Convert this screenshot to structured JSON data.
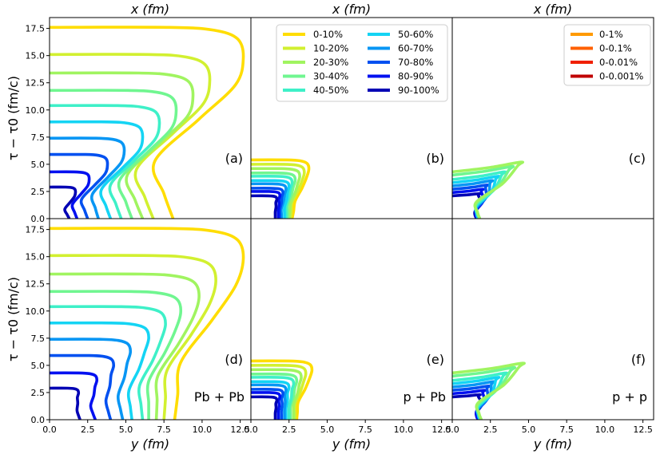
{
  "chart_data": {
    "type": "line",
    "layout": "2 rows x 3 columns of freeze-out surface contour panels",
    "top_axis_label": "x (fm)",
    "bottom_axis_label": "y (fm)",
    "ylabel": "τ − τ0 (fm/c)",
    "xlim": [
      0,
      13.2
    ],
    "ylim": [
      0,
      18.5
    ],
    "xticks": [
      "0.0",
      "2.5",
      "5.0",
      "7.5",
      "10.0",
      "12.5"
    ],
    "yticks": [
      "0.0",
      "2.5",
      "5.0",
      "7.5",
      "10.0",
      "12.5",
      "15.0",
      "17.5"
    ],
    "centrality_legend": {
      "entries": [
        {
          "label": "0-10%",
          "color": "#ffdd00"
        },
        {
          "label": "10-20%",
          "color": "#d2f030"
        },
        {
          "label": "20-30%",
          "color": "#a0f460"
        },
        {
          "label": "30-40%",
          "color": "#70f690"
        },
        {
          "label": "40-50%",
          "color": "#3ef0c8"
        },
        {
          "label": "50-60%",
          "color": "#14d4f4"
        },
        {
          "label": "60-70%",
          "color": "#0896f4"
        },
        {
          "label": "70-80%",
          "color": "#0050f0"
        },
        {
          "label": "80-90%",
          "color": "#0010f0"
        },
        {
          "label": "90-100%",
          "color": "#0000b4"
        }
      ]
    },
    "extra_legend": {
      "entries": [
        {
          "label": "0-1%",
          "color": "#ff9a00"
        },
        {
          "label": "0-0.1%",
          "color": "#ff6000"
        },
        {
          "label": "0-0.01%",
          "color": "#f02000"
        },
        {
          "label": "0-0.001%",
          "color": "#c00000"
        }
      ]
    },
    "panels": [
      {
        "id": "a",
        "label": "(a)",
        "system": "",
        "axis": "x",
        "curves": [
          {
            "tau_max": 17.6,
            "r0": 8.1,
            "r_mid": 6.9,
            "r_max": 12.7
          },
          {
            "tau_max": 15.1,
            "r0": 6.8,
            "r_mid": 5.7,
            "r_max": 10.5
          },
          {
            "tau_max": 13.4,
            "r0": 6.1,
            "r_mid": 5.1,
            "r_max": 9.4
          },
          {
            "tau_max": 11.8,
            "r0": 5.4,
            "r_mid": 4.6,
            "r_max": 8.3
          },
          {
            "tau_max": 10.4,
            "r0": 4.7,
            "r_mid": 4.0,
            "r_max": 7.2
          },
          {
            "tau_max": 8.9,
            "r0": 4.0,
            "r_mid": 3.4,
            "r_max": 6.1
          },
          {
            "tau_max": 7.4,
            "r0": 3.2,
            "r_mid": 2.8,
            "r_max": 4.9
          },
          {
            "tau_max": 5.9,
            "r0": 2.5,
            "r_mid": 2.1,
            "r_max": 3.8
          },
          {
            "tau_max": 4.3,
            "r0": 1.8,
            "r_mid": 1.5,
            "r_max": 2.6
          },
          {
            "tau_max": 2.9,
            "r0": 1.3,
            "r_mid": 1.0,
            "r_max": 1.7
          }
        ]
      },
      {
        "id": "b",
        "label": "(b)",
        "system": "",
        "axis": "x",
        "curves": [
          {
            "tau_max": 5.4,
            "r0": 2.7,
            "r_mid": 2.9,
            "r_max": 3.8
          },
          {
            "tau_max": 5.0,
            "r0": 2.6,
            "r_mid": 2.7,
            "r_max": 3.5
          },
          {
            "tau_max": 4.6,
            "r0": 2.5,
            "r_mid": 2.6,
            "r_max": 3.2
          },
          {
            "tau_max": 4.2,
            "r0": 2.4,
            "r_mid": 2.4,
            "r_max": 2.9
          },
          {
            "tau_max": 3.9,
            "r0": 2.3,
            "r_mid": 2.3,
            "r_max": 2.7
          },
          {
            "tau_max": 3.5,
            "r0": 2.2,
            "r_mid": 2.2,
            "r_max": 2.5
          },
          {
            "tau_max": 3.2,
            "r0": 2.0,
            "r_mid": 2.0,
            "r_max": 2.3
          },
          {
            "tau_max": 2.8,
            "r0": 1.9,
            "r_mid": 1.9,
            "r_max": 2.1
          },
          {
            "tau_max": 2.5,
            "r0": 1.8,
            "r_mid": 1.8,
            "r_max": 1.9
          },
          {
            "tau_max": 2.1,
            "r0": 1.6,
            "r_mid": 1.6,
            "r_max": 1.7
          }
        ]
      },
      {
        "id": "c",
        "label": "(c)",
        "system": "",
        "axis": "x",
        "curves": [
          {
            "tau_max": 4.3,
            "r0": 1.8,
            "r_mid": 1.5,
            "r_max": 4.5,
            "tip": 5.2
          },
          {
            "tau_max": 4.0,
            "r0": 1.8,
            "r_mid": 1.5,
            "r_max": 3.9,
            "tip": 4.8
          },
          {
            "tau_max": 3.6,
            "r0": 1.8,
            "r_mid": 1.5,
            "r_max": 3.4,
            "tip": 4.3
          },
          {
            "tau_max": 3.3,
            "r0": 1.7,
            "r_mid": 1.5,
            "r_max": 3.0,
            "tip": 3.9
          },
          {
            "tau_max": 3.0,
            "r0": 1.7,
            "r_mid": 1.5,
            "r_max": 2.6,
            "tip": 3.5
          },
          {
            "tau_max": 2.7,
            "r0": 1.7,
            "r_mid": 1.5,
            "r_max": 2.3,
            "tip": 3.1
          },
          {
            "tau_max": 2.4,
            "r0": 1.6,
            "r_mid": 1.5,
            "r_max": 2.0,
            "tip": 2.7
          },
          {
            "tau_max": 2.1,
            "r0": 1.6,
            "r_mid": 1.4,
            "r_max": 1.8,
            "tip": 2.3
          }
        ]
      },
      {
        "id": "d",
        "label": "(d)",
        "system": "Pb + Pb",
        "axis": "y",
        "curves": [
          {
            "tau_max": 17.6,
            "r0": 8.2,
            "r_mid": 8.6,
            "r_max": 12.7
          },
          {
            "tau_max": 15.1,
            "r0": 7.5,
            "r_mid": 7.7,
            "r_max": 10.9
          },
          {
            "tau_max": 13.4,
            "r0": 7.0,
            "r_mid": 7.1,
            "r_max": 9.8
          },
          {
            "tau_max": 11.8,
            "r0": 6.5,
            "r_mid": 6.5,
            "r_max": 8.6
          },
          {
            "tau_max": 10.4,
            "r0": 6.1,
            "r_mid": 5.9,
            "r_max": 7.6
          },
          {
            "tau_max": 8.9,
            "r0": 5.4,
            "r_mid": 5.2,
            "r_max": 6.5
          },
          {
            "tau_max": 7.4,
            "r0": 4.8,
            "r_mid": 4.5,
            "r_max": 5.3
          },
          {
            "tau_max": 5.9,
            "r0": 4.0,
            "r_mid": 3.7,
            "r_max": 4.2
          },
          {
            "tau_max": 4.3,
            "r0": 3.0,
            "r_mid": 2.7,
            "r_max": 3.1
          },
          {
            "tau_max": 2.9,
            "r0": 2.0,
            "r_mid": 1.8,
            "r_max": 1.9
          }
        ]
      },
      {
        "id": "e",
        "label": "(e)",
        "system": "p + Pb",
        "axis": "y",
        "curves": [
          {
            "tau_max": 5.4,
            "r0": 3.0,
            "r_mid": 3.1,
            "r_max": 4.0
          },
          {
            "tau_max": 5.0,
            "r0": 2.9,
            "r_mid": 2.9,
            "r_max": 3.6
          },
          {
            "tau_max": 4.6,
            "r0": 2.8,
            "r_mid": 2.8,
            "r_max": 3.3
          },
          {
            "tau_max": 4.2,
            "r0": 2.6,
            "r_mid": 2.6,
            "r_max": 3.0
          },
          {
            "tau_max": 3.9,
            "r0": 2.5,
            "r_mid": 2.5,
            "r_max": 2.8
          },
          {
            "tau_max": 3.5,
            "r0": 2.3,
            "r_mid": 2.3,
            "r_max": 2.5
          },
          {
            "tau_max": 3.2,
            "r0": 2.2,
            "r_mid": 2.2,
            "r_max": 2.3
          },
          {
            "tau_max": 2.8,
            "r0": 2.0,
            "r_mid": 2.0,
            "r_max": 2.1
          },
          {
            "tau_max": 2.5,
            "r0": 1.8,
            "r_mid": 1.8,
            "r_max": 1.9
          },
          {
            "tau_max": 2.1,
            "r0": 1.6,
            "r_mid": 1.6,
            "r_max": 1.7
          }
        ]
      },
      {
        "id": "f",
        "label": "(f)",
        "system": "p + p",
        "axis": "y",
        "curves": [
          {
            "tau_max": 4.3,
            "r0": 1.9,
            "r_mid": 1.6,
            "r_max": 4.6,
            "tip": 5.2
          },
          {
            "tau_max": 4.0,
            "r0": 1.9,
            "r_mid": 1.6,
            "r_max": 4.0,
            "tip": 4.8
          },
          {
            "tau_max": 3.6,
            "r0": 1.9,
            "r_mid": 1.6,
            "r_max": 3.5,
            "tip": 4.3
          },
          {
            "tau_max": 3.3,
            "r0": 1.8,
            "r_mid": 1.6,
            "r_max": 3.0,
            "tip": 3.9
          },
          {
            "tau_max": 3.0,
            "r0": 1.8,
            "r_mid": 1.6,
            "r_max": 2.7,
            "tip": 3.5
          },
          {
            "tau_max": 2.7,
            "r0": 1.8,
            "r_mid": 1.6,
            "r_max": 2.4,
            "tip": 3.1
          },
          {
            "tau_max": 2.4,
            "r0": 1.7,
            "r_mid": 1.5,
            "r_max": 2.1,
            "tip": 2.7
          },
          {
            "tau_max": 2.1,
            "r0": 1.7,
            "r_mid": 1.5,
            "r_max": 1.8,
            "tip": 2.3
          }
        ]
      }
    ]
  }
}
